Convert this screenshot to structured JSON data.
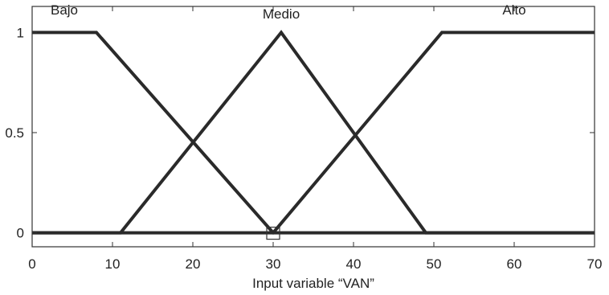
{
  "chart_data": {
    "type": "line",
    "title": "",
    "xlabel": "Input variable “VAN”",
    "ylabel": "",
    "xlim": [
      0,
      70
    ],
    "ylim": [
      -0.07,
      1.13
    ],
    "xticks": [
      0,
      10,
      20,
      30,
      40,
      50,
      60,
      70
    ],
    "xtick_labels": [
      "0",
      "10",
      "20",
      "30",
      "40",
      "50",
      "60",
      "70"
    ],
    "yticks": [
      0,
      0.5,
      1
    ],
    "ytick_labels": [
      "0",
      "0.5",
      "1"
    ],
    "grid": false,
    "series": [
      {
        "name": "Bajo",
        "label_pos": [
          4,
          1.09
        ],
        "x": [
          0,
          8,
          30,
          70
        ],
        "y": [
          1,
          1,
          0,
          0
        ]
      },
      {
        "name": "Medio",
        "label_pos": [
          31,
          1.07
        ],
        "x": [
          0,
          11,
          31,
          49,
          70
        ],
        "y": [
          0,
          0,
          1,
          0,
          0
        ]
      },
      {
        "name": "Alto",
        "label_pos": [
          60,
          1.09
        ],
        "x": [
          0,
          30,
          51,
          70
        ],
        "y": [
          0,
          0,
          1,
          1
        ]
      }
    ],
    "marker": {
      "shape": "square",
      "x": 30,
      "y": 0
    }
  }
}
